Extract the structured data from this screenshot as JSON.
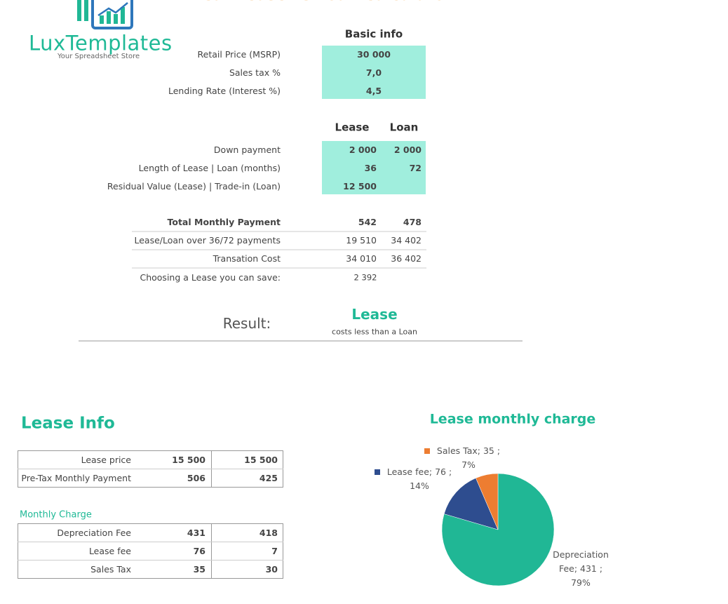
{
  "header": {
    "title": "Car Lease vs Loan Calculator",
    "logo": "LuxTemplates",
    "tagline": "Your Spreadsheet Store"
  },
  "basic_info": {
    "heading": "Basic info",
    "rows": [
      [
        "Retail Price (MSRP)",
        "30 000"
      ],
      [
        "Sales tax %",
        "7,0"
      ],
      [
        "Lending Rate (Interest %)",
        "4,5"
      ]
    ]
  },
  "comparison": {
    "headers": [
      "Lease",
      "Loan"
    ],
    "rows": [
      [
        "Down payment",
        "2 000",
        "2 000"
      ],
      [
        "Length of Lease | Loan (months)",
        "36",
        "72"
      ],
      [
        "Residual Value (Lease) | Trade-in (Loan)",
        "12 500"
      ]
    ]
  },
  "summary": {
    "rows": [
      [
        "Total Monthly Payment",
        "542",
        "478"
      ],
      [
        "Lease/Loan over 36/72 payments",
        "19 510",
        "34 402"
      ],
      [
        "Transation Cost",
        "34 010",
        "36 402"
      ],
      [
        "Choosing  a Lease you can save:",
        "2 392"
      ]
    ]
  },
  "result": {
    "label": "Result:",
    "winner": "Lease",
    "note": "costs less than a Loan"
  },
  "lease_info": {
    "title": "Lease Info",
    "rows": [
      [
        "Lease price",
        "15 500",
        "15 500"
      ],
      [
        "Pre-Tax Monthly Payment",
        "506",
        "425"
      ]
    ]
  },
  "monthly_charge": {
    "title": "Monthly Charge",
    "rows": [
      [
        "Depreciation Fee",
        "431",
        "418"
      ],
      [
        "Lease fee",
        "76",
        "7"
      ],
      [
        "Sales Tax",
        "35",
        "30"
      ]
    ]
  },
  "chart": {
    "type": "pie",
    "title": "Lease monthly charge",
    "values": [
      431,
      76,
      35
    ],
    "colors": [
      "#20b795",
      "#2e4d8f",
      "#ed7d31"
    ],
    "value_labels": [
      "Depreciation Fee;   431 ; 79%",
      "Lease fee;   76 ; 14%",
      "Sales Tax;   35 ; 7%"
    ]
  }
}
